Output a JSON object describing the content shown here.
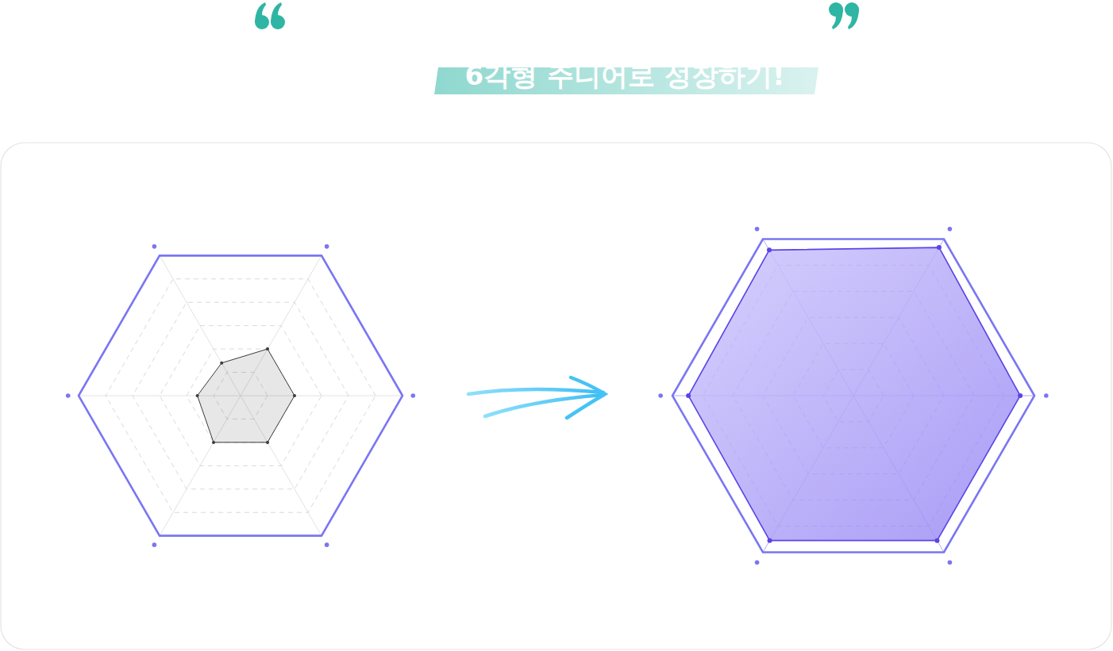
{
  "title": "6각형 주니어로 성장하기!",
  "chart_data": [
    {
      "type": "radar",
      "categories": [
        null,
        null,
        null,
        null,
        null,
        null
      ],
      "ylim": [
        0,
        6
      ],
      "yticks": [
        1,
        2,
        3,
        4,
        5,
        6
      ],
      "grid": true,
      "tick_labels": false,
      "series": [
        {
          "color": "#3a3a3a",
          "marker": "circle",
          "values": [
            2,
            2,
            1.4,
            1.6,
            2,
            2
          ]
        }
      ]
    },
    {
      "type": "radar",
      "categories": [
        null,
        null,
        null,
        null,
        null,
        null
      ],
      "ylim": [
        0,
        6
      ],
      "yticks": [
        1,
        2,
        3,
        4,
        5,
        6
      ],
      "grid": true,
      "tick_labels": false,
      "series": [
        {
          "color": "#5a44e6",
          "marker": "circle",
          "values": [
            5.53,
            5.68,
            5.58,
            5.47,
            5.55,
            5.55
          ]
        }
      ]
    }
  ]
}
